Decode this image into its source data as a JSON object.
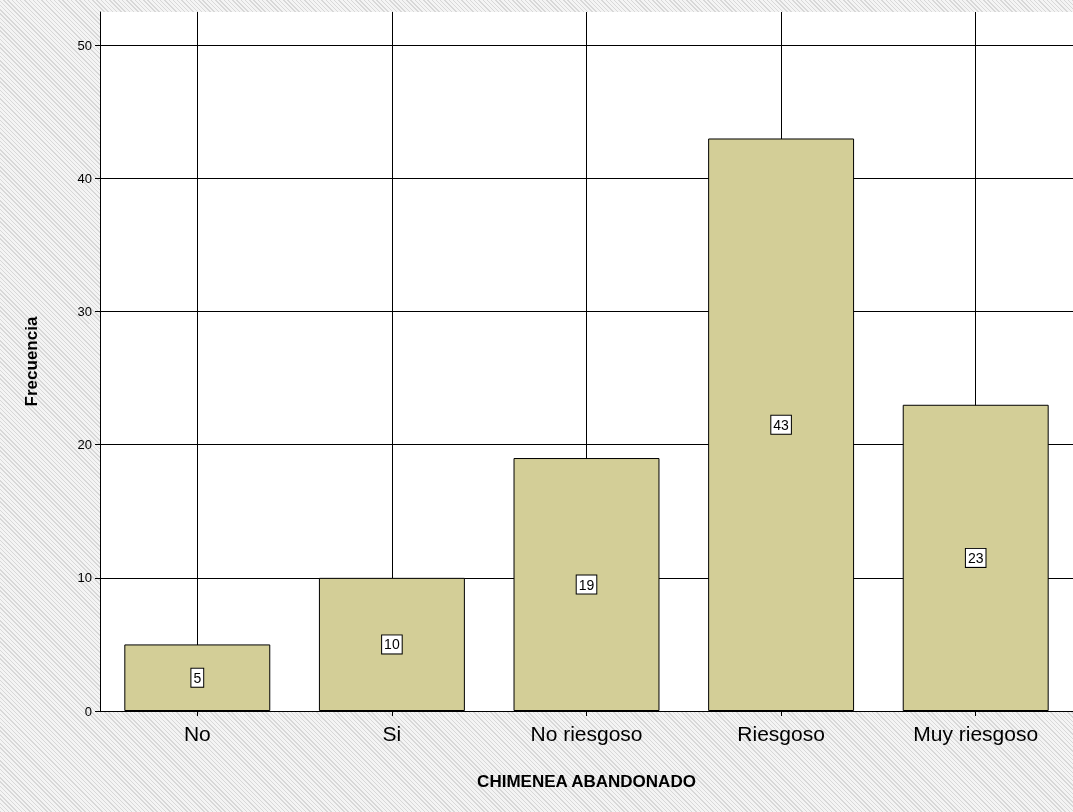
{
  "chart_data": {
    "type": "bar",
    "xlabel": "CHIMENEA ABANDONADO",
    "ylabel": "Frecuencia",
    "categories": [
      "No",
      "Si",
      "No riesgoso",
      "Riesgoso",
      "Muy riesgoso"
    ],
    "values": [
      5,
      10,
      19,
      43,
      23
    ],
    "color": "#d3ce97",
    "ylim": [
      0,
      52.5
    ],
    "yticks": [
      0,
      10,
      20,
      30,
      40,
      50
    ],
    "grid": true,
    "data_labels": true
  }
}
